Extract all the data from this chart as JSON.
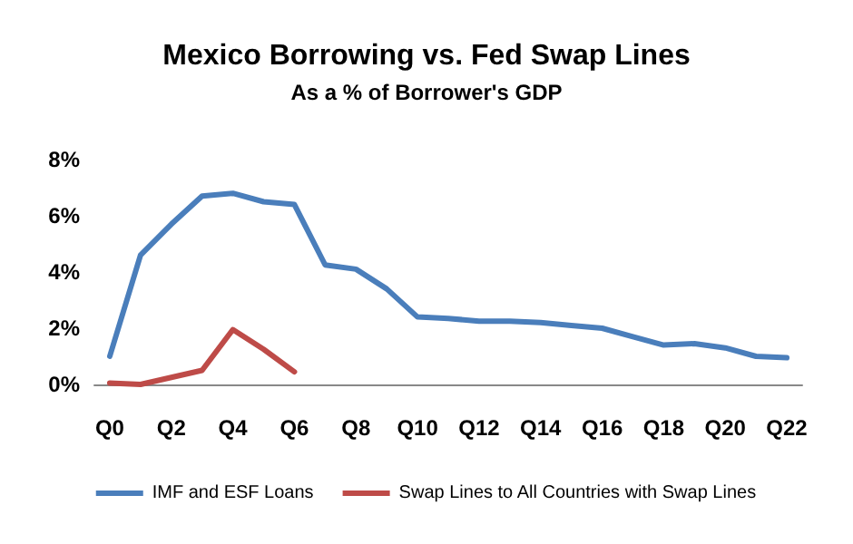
{
  "chart_data": {
    "type": "line",
    "title": "Mexico Borrowing vs. Fed Swap Lines",
    "subtitle": "As a % of Borrower's GDP",
    "categories": [
      "Q0",
      null,
      "Q2",
      null,
      "Q4",
      null,
      "Q6",
      null,
      "Q8",
      null,
      "Q10",
      null,
      "Q12",
      null,
      "Q14",
      null,
      "Q16",
      null,
      "Q18",
      null,
      "Q20",
      null,
      "Q22"
    ],
    "series": [
      {
        "name": "IMF and ESF Loans",
        "color": "#4a7ebb",
        "values": [
          1.0,
          4.6,
          5.7,
          6.7,
          6.8,
          6.5,
          6.4,
          4.25,
          4.1,
          3.4,
          2.4,
          2.35,
          2.25,
          2.25,
          2.2,
          2.1,
          2.0,
          1.7,
          1.4,
          1.45,
          1.3,
          1.0,
          0.95
        ]
      },
      {
        "name": "Swap Lines to All Countries with Swap Lines",
        "color": "#be4b48",
        "values": [
          0.05,
          0,
          0.25,
          0.5,
          1.95,
          1.25,
          0.45,
          null,
          null,
          null,
          null,
          null,
          null,
          null,
          null,
          null,
          null,
          null,
          null,
          null,
          null,
          null,
          null
        ]
      }
    ],
    "ylim": [
      0,
      8
    ],
    "yticks": [
      {
        "value": 0,
        "label": "0%"
      },
      {
        "value": 2,
        "label": "2%"
      },
      {
        "value": 4,
        "label": "4%"
      },
      {
        "value": 6,
        "label": "6%"
      },
      {
        "value": 8,
        "label": "8%"
      }
    ],
    "grid": false,
    "legend": "bottom",
    "marker": "none",
    "line_style": "solid"
  }
}
